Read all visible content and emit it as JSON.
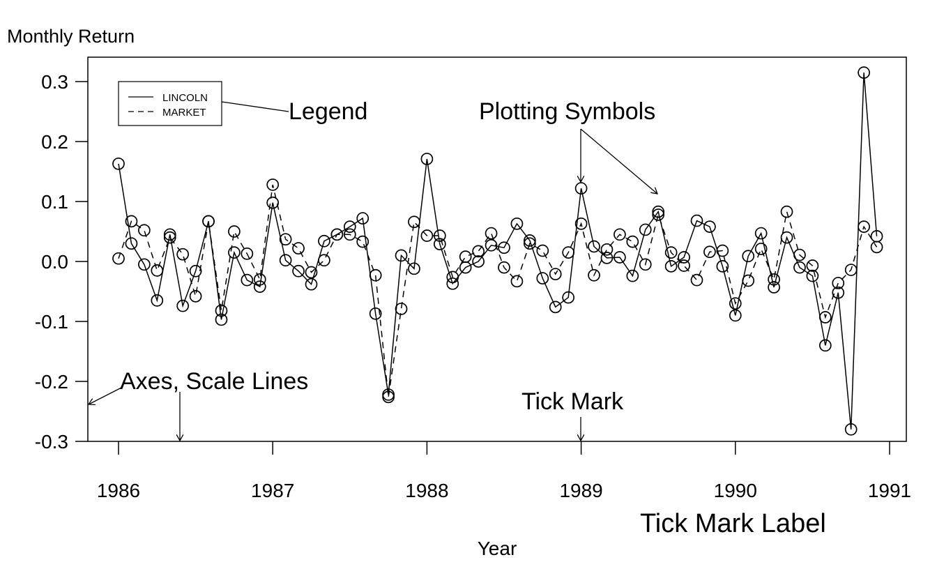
{
  "chart_data": {
    "type": "line",
    "title": "",
    "xlabel": "Year",
    "ylabel": "Monthly Return",
    "xlim": [
      1985.8,
      1991.05
    ],
    "ylim": [
      -0.3,
      0.3
    ],
    "x_ticks": [
      "1986",
      "1987",
      "1988",
      "1989",
      "1990",
      "1991"
    ],
    "y_ticks": [
      "-0.3",
      "-0.2",
      "-0.1",
      "0.0",
      "0.1",
      "0.2",
      "0.3"
    ],
    "x_start": 1986,
    "x_step_months": 1,
    "grid": false,
    "legend_position": "top-left",
    "marker": "open-circle",
    "series": [
      {
        "name": "LINCOLN",
        "line": "solid",
        "values": [
          0.163,
          0.03,
          -0.005,
          -0.065,
          0.045,
          -0.074,
          -0.016,
          0.067,
          -0.097,
          0.015,
          -0.031,
          -0.042,
          0.098,
          0.002,
          -0.016,
          -0.038,
          0.034,
          0.045,
          0.058,
          0.072,
          -0.087,
          -0.222,
          0.01,
          -0.012,
          0.171,
          0.029,
          -0.037,
          -0.01,
          0.0,
          0.027,
          0.023,
          0.063,
          0.035,
          -0.028,
          -0.076,
          -0.06,
          0.122,
          0.025,
          0.006,
          0.007,
          -0.024,
          0.053,
          0.083,
          -0.008,
          0.007,
          0.068,
          0.058,
          -0.008,
          -0.09,
          0.009,
          0.047,
          -0.043,
          0.04,
          -0.01,
          -0.024,
          -0.14,
          -0.052,
          -0.28,
          0.315,
          0.042
        ]
      },
      {
        "name": "MARKET",
        "line": "dashed",
        "values": [
          0.005,
          0.067,
          0.052,
          -0.015,
          0.04,
          0.012,
          -0.058,
          0.067,
          -0.082,
          0.05,
          0.013,
          -0.03,
          0.128,
          0.037,
          0.022,
          -0.018,
          0.002,
          0.045,
          0.045,
          0.033,
          -0.023,
          -0.226,
          -0.079,
          0.066,
          0.043,
          0.043,
          -0.026,
          0.008,
          0.017,
          0.047,
          -0.01,
          -0.033,
          0.03,
          0.018,
          -0.021,
          0.015,
          0.063,
          -0.023,
          0.02,
          0.045,
          0.033,
          -0.005,
          0.078,
          0.015,
          -0.007,
          -0.031,
          0.016,
          0.018,
          -0.07,
          -0.032,
          0.021,
          -0.03,
          0.083,
          0.011,
          -0.007,
          -0.093,
          -0.036,
          -0.014,
          0.058,
          0.024
        ]
      }
    ],
    "annotations": {
      "legend": "Legend",
      "plotting_symbols": "Plotting Symbols",
      "axes": "Axes, Scale Lines",
      "tick_mark": "Tick Mark",
      "tick_mark_label": "Tick Mark Label"
    }
  }
}
